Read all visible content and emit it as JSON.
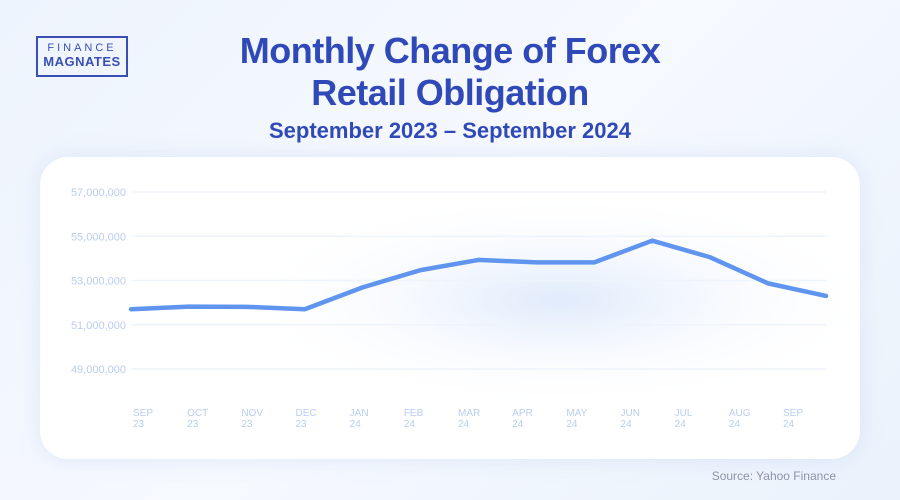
{
  "logo": {
    "line1": "FINANCE",
    "line2": "MAGNATES"
  },
  "title_line1": "Monthly Change of Forex",
  "title_line2": "Retail Obligation",
  "subtitle": "September 2023 – September 2024",
  "source": "Source: Yahoo Finance",
  "colors": {
    "line": "#5f95ef",
    "title": "#3049b8",
    "tick": "#b9cdf0"
  },
  "chart_data": {
    "type": "line",
    "title": "Monthly Change of Forex Retail Obligation",
    "categories": [
      [
        "SEP",
        "23"
      ],
      [
        "OCT",
        "23"
      ],
      [
        "NOV",
        "23"
      ],
      [
        "DEC",
        "23"
      ],
      [
        "JAN",
        "24"
      ],
      [
        "FEB",
        "24"
      ],
      [
        "MAR",
        "24"
      ],
      [
        "APR",
        "24"
      ],
      [
        "MAY",
        "24"
      ],
      [
        "JUN",
        "24"
      ],
      [
        "JUL",
        "24"
      ],
      [
        "AUG",
        "24"
      ],
      [
        "SEP",
        "24"
      ]
    ],
    "values": [
      51700000,
      51820000,
      51810000,
      51700000,
      52690000,
      53470000,
      53930000,
      53820000,
      53820000,
      54800000,
      54050000,
      52870000,
      52300000
    ],
    "yticks": [
      "57,000,000",
      "55,000,000",
      "53,000,000",
      "51,000,000",
      "49,000,000"
    ],
    "ylim": [
      49000000,
      57000000
    ],
    "grid": true,
    "legend": "none"
  }
}
